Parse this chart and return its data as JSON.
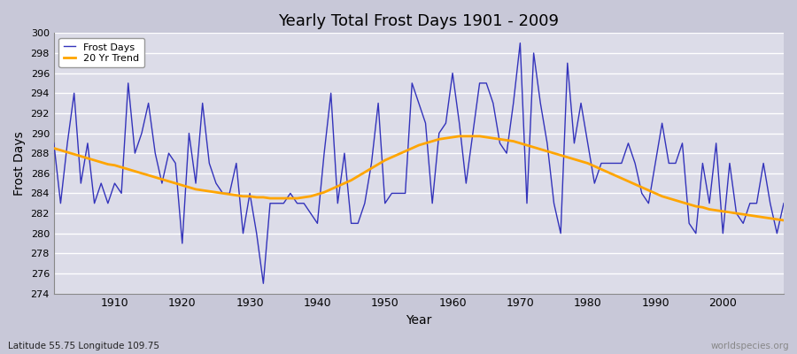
{
  "title": "Yearly Total Frost Days 1901 - 2009",
  "xlabel": "Year",
  "ylabel": "Frost Days",
  "subtitle": "Latitude 55.75 Longitude 109.75",
  "watermark": "worldspecies.org",
  "legend_labels": [
    "Frost Days",
    "20 Yr Trend"
  ],
  "line_color": "#3333bb",
  "trend_color": "#ffa500",
  "plot_bg_color": "#dcdce8",
  "fig_bg_color": "#c8c8d8",
  "ylim": [
    274,
    300
  ],
  "xlim": [
    1901,
    2009
  ],
  "years": [
    1901,
    1902,
    1903,
    1904,
    1905,
    1906,
    1907,
    1908,
    1909,
    1910,
    1911,
    1912,
    1913,
    1914,
    1915,
    1916,
    1917,
    1918,
    1919,
    1920,
    1921,
    1922,
    1923,
    1924,
    1925,
    1926,
    1927,
    1928,
    1929,
    1930,
    1931,
    1932,
    1933,
    1934,
    1935,
    1936,
    1937,
    1938,
    1939,
    1940,
    1941,
    1942,
    1943,
    1944,
    1945,
    1946,
    1947,
    1948,
    1949,
    1950,
    1951,
    1952,
    1953,
    1954,
    1955,
    1956,
    1957,
    1958,
    1959,
    1960,
    1961,
    1962,
    1963,
    1964,
    1965,
    1966,
    1967,
    1968,
    1969,
    1970,
    1971,
    1972,
    1973,
    1974,
    1975,
    1976,
    1977,
    1978,
    1979,
    1980,
    1981,
    1982,
    1983,
    1984,
    1985,
    1986,
    1987,
    1988,
    1989,
    1990,
    1991,
    1992,
    1993,
    1994,
    1995,
    1996,
    1997,
    1998,
    1999,
    2000,
    2001,
    2002,
    2003,
    2004,
    2005,
    2006,
    2007,
    2008,
    2009
  ],
  "frost_days": [
    289,
    283,
    289,
    294,
    285,
    289,
    283,
    285,
    283,
    285,
    284,
    295,
    288,
    290,
    293,
    288,
    285,
    288,
    287,
    279,
    290,
    285,
    293,
    287,
    285,
    284,
    284,
    287,
    280,
    284,
    280,
    275,
    283,
    283,
    283,
    284,
    283,
    283,
    282,
    281,
    288,
    294,
    283,
    288,
    281,
    281,
    283,
    287,
    293,
    283,
    284,
    284,
    284,
    295,
    293,
    291,
    283,
    290,
    291,
    296,
    291,
    285,
    290,
    295,
    295,
    293,
    289,
    288,
    293,
    299,
    283,
    298,
    293,
    289,
    283,
    280,
    297,
    289,
    293,
    289,
    285,
    287,
    287,
    287,
    287,
    289,
    287,
    284,
    283,
    287,
    291,
    287,
    287,
    289,
    281,
    280,
    287,
    283,
    289,
    280,
    287,
    282,
    281,
    283,
    283,
    287,
    283,
    280,
    283
  ],
  "trend_years": [
    1901,
    1902,
    1903,
    1904,
    1905,
    1906,
    1907,
    1908,
    1909,
    1910,
    1911,
    1912,
    1913,
    1914,
    1915,
    1916,
    1917,
    1918,
    1919,
    1920,
    1921,
    1922,
    1923,
    1924,
    1925,
    1926,
    1927,
    1928,
    1929,
    1930,
    1931,
    1932,
    1933,
    1934,
    1935,
    1936,
    1937,
    1938,
    1939,
    1940,
    1941,
    1942,
    1943,
    1944,
    1945,
    1946,
    1947,
    1948,
    1949,
    1950,
    1951,
    1952,
    1953,
    1954,
    1955,
    1956,
    1957,
    1958,
    1959,
    1960,
    1961,
    1962,
    1963,
    1964,
    1965,
    1966,
    1967,
    1968,
    1969,
    1970,
    1971,
    1972,
    1973,
    1974,
    1975,
    1976,
    1977,
    1978,
    1979,
    1980,
    1981,
    1982,
    1983,
    1984,
    1985,
    1986,
    1987,
    1988,
    1989,
    1990,
    1991,
    1992,
    1993,
    1994,
    1995,
    1996,
    1997,
    1998,
    1999,
    2000,
    2001,
    2002,
    2003,
    2004,
    2005,
    2006,
    2007,
    2008,
    2009
  ],
  "trend_values": [
    288.5,
    288.3,
    288.1,
    287.9,
    287.7,
    287.5,
    287.3,
    287.1,
    286.9,
    286.8,
    286.6,
    286.4,
    286.2,
    286.0,
    285.8,
    285.6,
    285.4,
    285.2,
    285.0,
    284.8,
    284.6,
    284.4,
    284.3,
    284.2,
    284.1,
    284.0,
    283.9,
    283.8,
    283.7,
    283.7,
    283.6,
    283.6,
    283.5,
    283.5,
    283.5,
    283.5,
    283.5,
    283.6,
    283.7,
    283.9,
    284.1,
    284.4,
    284.7,
    285.0,
    285.3,
    285.7,
    286.1,
    286.5,
    286.9,
    287.3,
    287.6,
    287.9,
    288.2,
    288.5,
    288.8,
    289.0,
    289.2,
    289.4,
    289.5,
    289.6,
    289.7,
    289.7,
    289.7,
    289.7,
    289.6,
    289.5,
    289.4,
    289.3,
    289.2,
    289.0,
    288.8,
    288.6,
    288.4,
    288.2,
    288.0,
    287.8,
    287.6,
    287.4,
    287.2,
    287.0,
    286.7,
    286.4,
    286.1,
    285.8,
    285.5,
    285.2,
    284.9,
    284.6,
    284.3,
    284.0,
    283.7,
    283.5,
    283.3,
    283.1,
    282.9,
    282.7,
    282.6,
    282.4,
    282.3,
    282.2,
    282.1,
    282.0,
    281.9,
    281.8,
    281.7,
    281.6,
    281.5,
    281.4,
    281.3
  ]
}
